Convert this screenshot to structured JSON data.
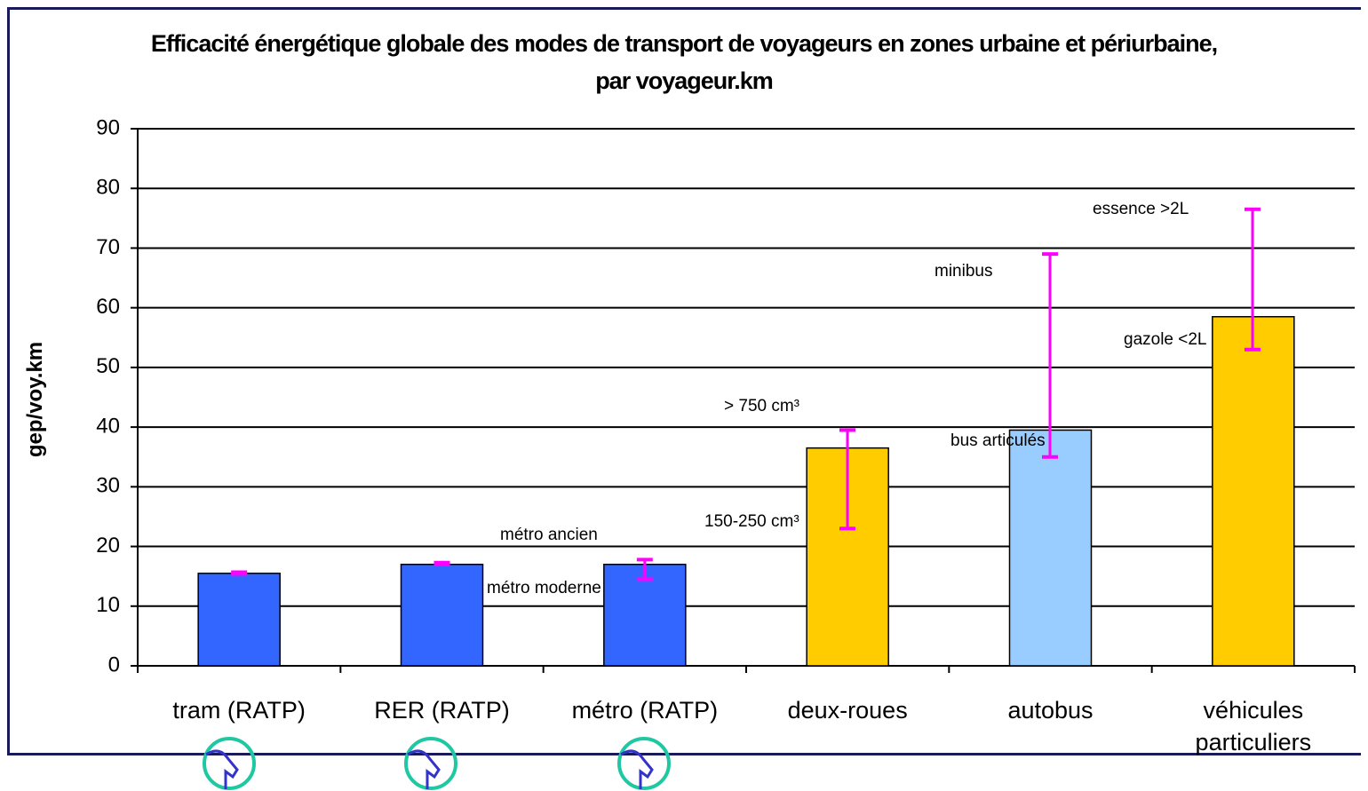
{
  "chart_data": {
    "type": "bar",
    "title": "Efficacité énergétique globale des modes de transport de voyageurs en zones urbaine et périurbaine, par voyageur.km",
    "ylabel": "gep/voy.km",
    "categories": [
      "tram (RATP)",
      "RER (RATP)",
      "métro (RATP)",
      "deux-roues",
      "autobus",
      "véhicules particuliers"
    ],
    "values": [
      15.5,
      17,
      17,
      36.5,
      39.5,
      58.5
    ],
    "colors": [
      "#3366ff",
      "#3366ff",
      "#3366ff",
      "#ffcc00",
      "#99ccff",
      "#ffcc00"
    ],
    "range_low": [
      15.4,
      17,
      14.5,
      23,
      35,
      53
    ],
    "range_high": [
      15.7,
      17.3,
      17.8,
      39.5,
      69,
      76.5
    ],
    "error_color": "#ff00ff",
    "ylim": [
      0,
      90
    ],
    "yticks": [
      0,
      10,
      20,
      30,
      40,
      50,
      60,
      70,
      80,
      90
    ],
    "grid": true,
    "annotations": [
      "essence >2L",
      "minibus",
      "gazole <2L",
      "bus articulés",
      "> 750 cm³",
      "150-250 cm³",
      "métro ancien",
      "métro moderne"
    ]
  }
}
